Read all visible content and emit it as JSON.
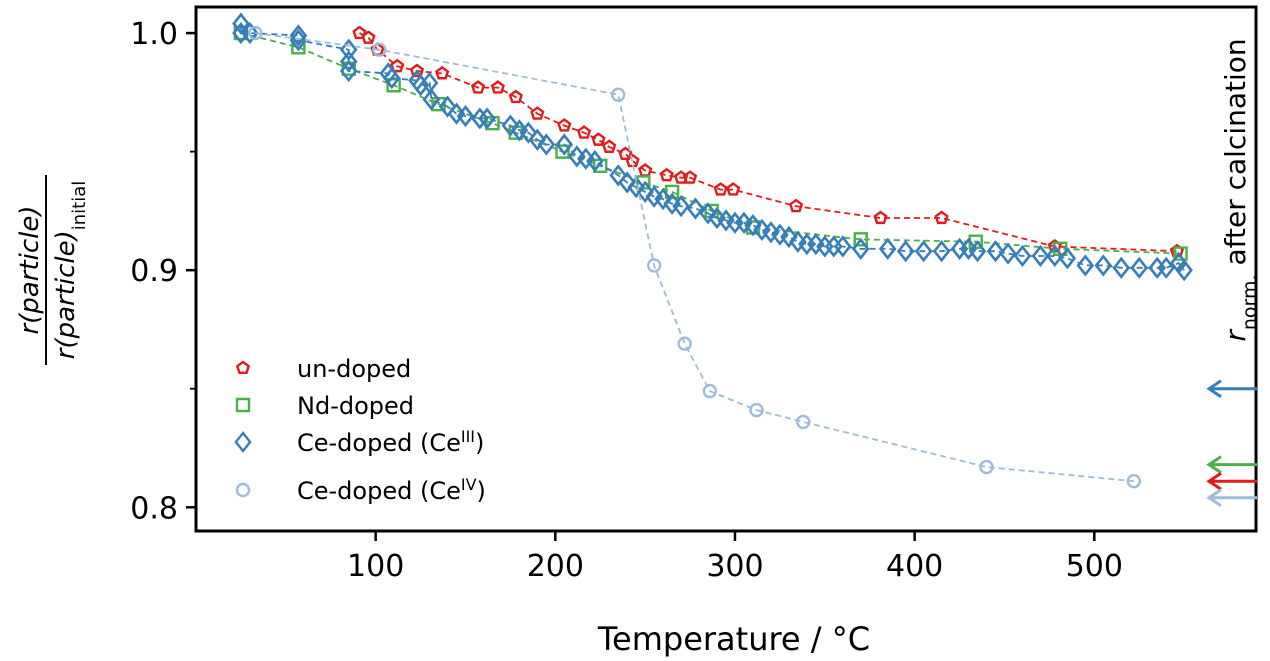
{
  "chart_data": {
    "type": "line",
    "xlabel": "Temperature / °C",
    "ylabel": {
      "numerator": "r(particle)",
      "denominator_main": "r(particle)",
      "denominator_sub": "initial"
    },
    "right_label": {
      "main": "r",
      "sub": "norm.",
      "rest": " after calcination"
    },
    "xlim": [
      0,
      590
    ],
    "ylim": [
      0.79,
      1.011
    ],
    "xticks": [
      100,
      200,
      300,
      400,
      500
    ],
    "xtick_labels": [
      "100",
      "200",
      "300",
      "400",
      "500"
    ],
    "yticks": [
      0.8,
      0.9,
      1.0
    ],
    "ytick_labels": [
      "0.8",
      "0.9",
      "1.0"
    ],
    "yticks_minor": [
      0.85,
      0.95
    ],
    "legend_position": "lower-left",
    "series": [
      {
        "name": "un-doped",
        "name_sup": "",
        "marker": "pentagon",
        "color": "#e41a1c",
        "data": [
          [
            91,
            1.0
          ],
          [
            96,
            0.998
          ],
          [
            101,
            0.993
          ],
          [
            112,
            0.986
          ],
          [
            123,
            0.984
          ],
          [
            137,
            0.983
          ],
          [
            157,
            0.977
          ],
          [
            168,
            0.977
          ],
          [
            178,
            0.973
          ],
          [
            190,
            0.966
          ],
          [
            205,
            0.961
          ],
          [
            216,
            0.958
          ],
          [
            224,
            0.955
          ],
          [
            230,
            0.952
          ],
          [
            239,
            0.949
          ],
          [
            243,
            0.946
          ],
          [
            250,
            0.942
          ],
          [
            262,
            0.94
          ],
          [
            270,
            0.939
          ],
          [
            275,
            0.939
          ],
          [
            292,
            0.934
          ],
          [
            299,
            0.934
          ],
          [
            334,
            0.927
          ],
          [
            381,
            0.922
          ],
          [
            415,
            0.922
          ],
          [
            478,
            0.91
          ],
          [
            546,
            0.908
          ]
        ]
      },
      {
        "name": "Nd-doped",
        "name_sup": "",
        "marker": "square",
        "color": "#4daf4a",
        "data": [
          [
            25,
            1.0
          ],
          [
            57,
            0.994
          ],
          [
            85,
            0.985
          ],
          [
            110,
            0.978
          ],
          [
            135,
            0.97
          ],
          [
            165,
            0.962
          ],
          [
            178,
            0.958
          ],
          [
            204,
            0.95
          ],
          [
            225,
            0.944
          ],
          [
            249,
            0.937
          ],
          [
            265,
            0.933
          ],
          [
            287,
            0.925
          ],
          [
            310,
            0.918
          ],
          [
            370,
            0.913
          ],
          [
            434,
            0.912
          ],
          [
            481,
            0.909
          ],
          [
            548,
            0.907
          ]
        ]
      },
      {
        "name": "Ce-doped (Ce",
        "name_sup": "III",
        "marker": "diamond",
        "color": "#377eb8",
        "data": [
          [
            25,
            1.004
          ],
          [
            25,
            1.0
          ],
          [
            30,
            1.0
          ],
          [
            57,
            0.999
          ],
          [
            57,
            0.997
          ],
          [
            85,
            0.993
          ],
          [
            85,
            0.988
          ],
          [
            85,
            0.984
          ],
          [
            107,
            0.983
          ],
          [
            109,
            0.981
          ],
          [
            123,
            0.98
          ],
          [
            125,
            0.978
          ],
          [
            130,
            0.979
          ],
          [
            131,
            0.972
          ],
          [
            140,
            0.969
          ],
          [
            145,
            0.966
          ],
          [
            150,
            0.965
          ],
          [
            158,
            0.964
          ],
          [
            162,
            0.964
          ],
          [
            175,
            0.961
          ],
          [
            180,
            0.959
          ],
          [
            185,
            0.958
          ],
          [
            190,
            0.955
          ],
          [
            195,
            0.953
          ],
          [
            205,
            0.953
          ],
          [
            212,
            0.948
          ],
          [
            217,
            0.947
          ],
          [
            222,
            0.946
          ],
          [
            235,
            0.94
          ],
          [
            240,
            0.937
          ],
          [
            245,
            0.935
          ],
          [
            250,
            0.933
          ],
          [
            255,
            0.931
          ],
          [
            260,
            0.93
          ],
          [
            265,
            0.928
          ],
          [
            270,
            0.927
          ],
          [
            278,
            0.926
          ],
          [
            285,
            0.924
          ],
          [
            290,
            0.922
          ],
          [
            295,
            0.921
          ],
          [
            300,
            0.92
          ],
          [
            305,
            0.92
          ],
          [
            310,
            0.919
          ],
          [
            315,
            0.917
          ],
          [
            320,
            0.916
          ],
          [
            325,
            0.915
          ],
          [
            330,
            0.914
          ],
          [
            335,
            0.912
          ],
          [
            340,
            0.911
          ],
          [
            345,
            0.911
          ],
          [
            350,
            0.91
          ],
          [
            355,
            0.91
          ],
          [
            360,
            0.91
          ],
          [
            370,
            0.909
          ],
          [
            385,
            0.909
          ],
          [
            395,
            0.908
          ],
          [
            405,
            0.908
          ],
          [
            415,
            0.908
          ],
          [
            425,
            0.909
          ],
          [
            430,
            0.909
          ],
          [
            435,
            0.908
          ],
          [
            445,
            0.908
          ],
          [
            452,
            0.907
          ],
          [
            460,
            0.906
          ],
          [
            470,
            0.906
          ],
          [
            478,
            0.906
          ],
          [
            485,
            0.905
          ],
          [
            495,
            0.902
          ],
          [
            505,
            0.902
          ],
          [
            515,
            0.901
          ],
          [
            525,
            0.901
          ],
          [
            535,
            0.901
          ],
          [
            540,
            0.901
          ],
          [
            547,
            0.903
          ],
          [
            550,
            0.9
          ]
        ]
      },
      {
        "name": "Ce-doped (Ce",
        "name_sup": "IV",
        "marker": "circle",
        "color": "#9ebcda",
        "data": [
          [
            33,
            1.0
          ],
          [
            102,
            0.993
          ],
          [
            235,
            0.974
          ],
          [
            255,
            0.902
          ],
          [
            272,
            0.869
          ],
          [
            286,
            0.849
          ],
          [
            312,
            0.841
          ],
          [
            338,
            0.836
          ],
          [
            440,
            0.817
          ],
          [
            522,
            0.811
          ]
        ]
      }
    ],
    "arrows": [
      {
        "y": 0.85,
        "color": "#377eb8"
      },
      {
        "y": 0.818,
        "color": "#4daf4a"
      },
      {
        "y": 0.811,
        "color": "#e41a1c"
      },
      {
        "y": 0.804,
        "color": "#9ebcda"
      }
    ]
  }
}
